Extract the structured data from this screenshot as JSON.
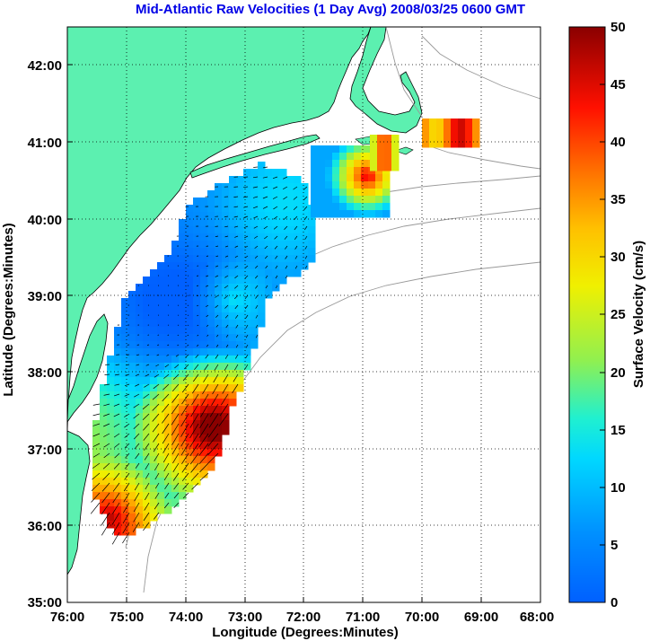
{
  "title": "Mid-Atlantic Raw Velocities (1 Day Avg) 2008/03/25 0600 GMT",
  "map": {
    "xlabel": "Longitude (Degrees:Minutes)",
    "ylabel": "Latitude (Degrees:Minutes)",
    "x_ticks": [
      "76:00",
      "75:00",
      "74:00",
      "73:00",
      "72:00",
      "71:00",
      "70:00",
      "69:00",
      "68:00"
    ],
    "y_ticks": [
      "42:00",
      "41:00",
      "40:00",
      "39:00",
      "38:00",
      "37:00",
      "36:00",
      "35:00"
    ],
    "lon_range": [
      -76,
      -68
    ],
    "lat_range": [
      35,
      42.5
    ],
    "land_color": "#5cf0b0",
    "grid": "dotted"
  },
  "colorbar": {
    "label": "Surface Velocity (cm/s)",
    "ticks": [
      "50",
      "45",
      "40",
      "35",
      "30",
      "25",
      "20",
      "15",
      "10",
      "5",
      "0"
    ],
    "range": [
      0,
      50
    ],
    "colormap": "jet"
  }
}
